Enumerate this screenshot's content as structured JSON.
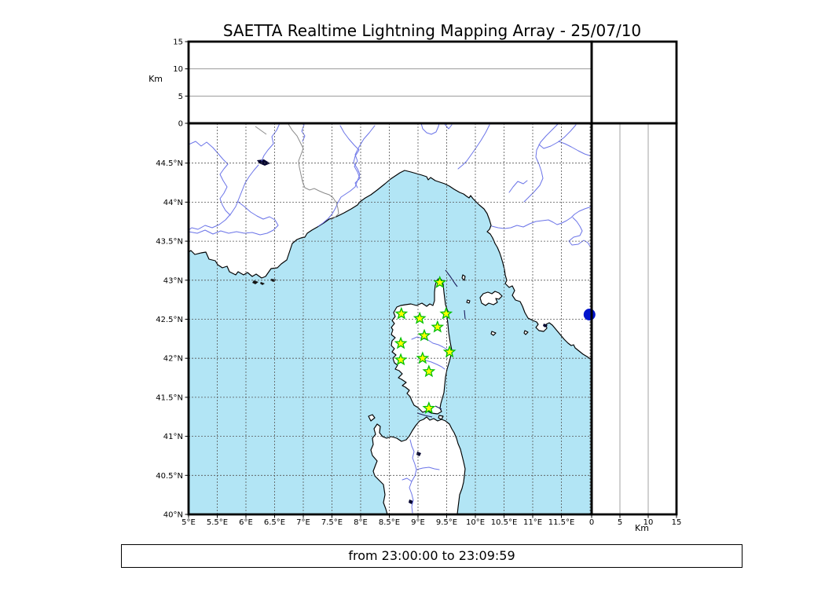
{
  "title": "SAETTA Realtime Lightning Mapping Array - 25/07/10",
  "footer": {
    "text": "from 23:00:00 to 23:09:59"
  },
  "colors": {
    "sea": "#b2e5f5",
    "land": "#ffffff",
    "coast": "#000000",
    "river": "#6b74e8",
    "grid": "#555555",
    "station_fill": "#ffff00",
    "station_edge": "#00c000",
    "detection": "#0014cc",
    "frame": "#000000"
  },
  "chart_data": {
    "type": "map",
    "title": "SAETTA Realtime Lightning Mapping Array - 25/07/10",
    "time_window": {
      "from": "23:00:00",
      "to": "23:09:59"
    },
    "map_panel": {
      "lon_range": [
        5.0,
        12.03
      ],
      "lat_range": [
        40.0,
        45.01
      ],
      "grid": true,
      "lon_tick_labels": [
        "5°E",
        "5.5°E",
        "6°E",
        "6.5°E",
        "7°E",
        "7.5°E",
        "8°E",
        "8.5°E",
        "9°E",
        "9.5°E",
        "10°E",
        "10.5°E",
        "11°E",
        "11.5°E"
      ],
      "lon_tick_values": [
        5,
        5.5,
        6,
        6.5,
        7,
        7.5,
        8,
        8.5,
        9,
        9.5,
        10,
        10.5,
        11,
        11.5
      ],
      "lat_tick_labels": [
        "40°N",
        "40.5°N",
        "41°N",
        "41.5°N",
        "42°N",
        "42.5°N",
        "43°N",
        "43.5°N",
        "44°N",
        "44.5°N"
      ],
      "lat_tick_values": [
        40,
        40.5,
        41,
        41.5,
        42,
        42.5,
        43,
        43.5,
        44,
        44.5
      ],
      "stations": [
        [
          9.38,
          42.97
        ],
        [
          8.71,
          42.57
        ],
        [
          9.03,
          42.51
        ],
        [
          9.49,
          42.57
        ],
        [
          9.34,
          42.4
        ],
        [
          9.11,
          42.29
        ],
        [
          8.7,
          42.19
        ],
        [
          9.55,
          42.08
        ],
        [
          9.08,
          42.0
        ],
        [
          8.7,
          41.98
        ],
        [
          9.19,
          41.83
        ],
        [
          9.19,
          41.36
        ]
      ],
      "detection_points": [
        [
          11.99,
          42.56
        ]
      ]
    },
    "altitude_panel_top": {
      "ylabel": "Km",
      "ylim": [
        0,
        15
      ],
      "ytick_labels": [
        "0",
        "5",
        "10",
        "15"
      ],
      "ytick_values": [
        0,
        5,
        10,
        15
      ],
      "gridlines": [
        5,
        10
      ],
      "points": []
    },
    "altitude_panel_right": {
      "xlabel": "Km",
      "xlim": [
        0,
        15
      ],
      "xtick_labels": [
        "0",
        "5",
        "10",
        "15"
      ],
      "xtick_values": [
        0,
        5,
        10,
        15
      ],
      "gridlines": [
        5,
        10
      ],
      "points": []
    }
  }
}
